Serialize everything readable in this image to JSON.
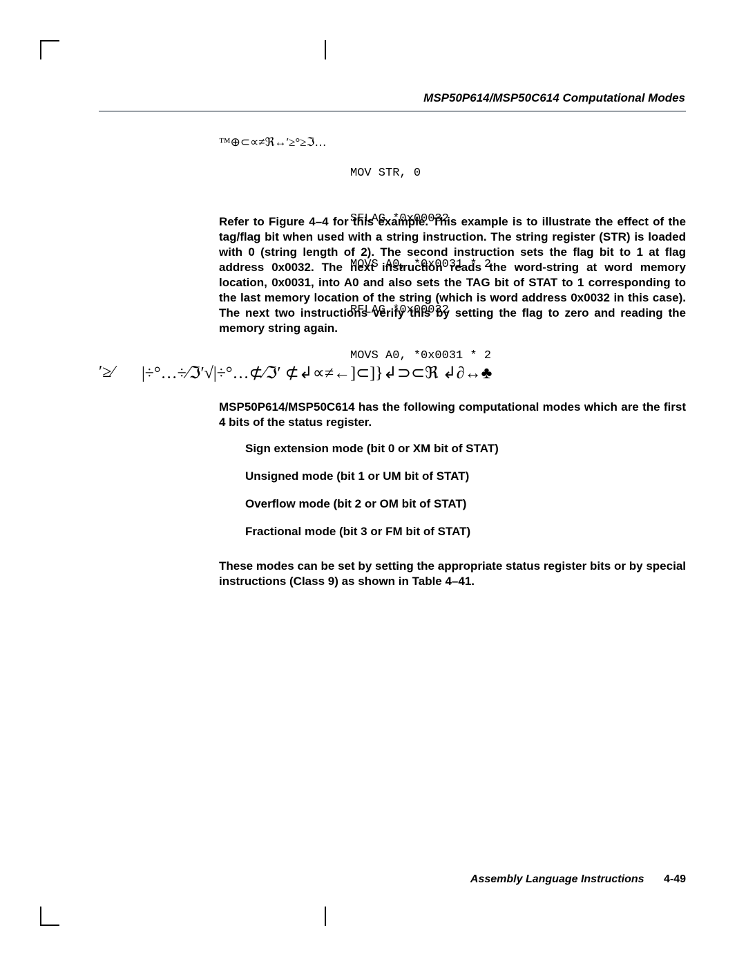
{
  "header": {
    "title": "MSP50P614/MSP50C614 Computational Modes"
  },
  "code_example": {
    "label_symbols": "™⊕⊂∝≠ℜ↔′≥°≥ℑ…",
    "lines": [
      "MOV STR, 0",
      "SFLAG *0x00032",
      "MOVS A0, *0x0031 * 2",
      "RFLAG *0x00032",
      "MOVS A0, *0x0031 * 2"
    ]
  },
  "paragraph_after_code": "Refer to Figure 4–4 for this example. This example is to illustrate the effect of the tag/flag bit when used with a string instruction. The string register (STR) is loaded with 0 (string length of 2). The second instruction sets the flag bit to 1 at flag address 0x0032. The next instruction reads the word-string at word memory location, 0x0031, into A0 and also sets the TAG bit of STAT to 1 corresponding to the last memory location of the string (which is word address 0x0032 in this case). The next two instructions verify this by setting the flag to zero and reading the memory string again.",
  "section": {
    "number_symbols": "′≥⁄",
    "title_symbols": "|÷°…÷⁄ℑ′√|÷°…⊄⁄ℑ′ ⊄↲∝≠←]⊂]}↲⊃⊂ℜ  ↲∂↔♣"
  },
  "paragraph_intro": "MSP50P614/MSP50C614 has the following computational modes which are the first 4 bits of the status register.",
  "modes": [
    "Sign extension mode (bit 0 or XM bit of STAT)",
    "Unsigned mode (bit 1 or UM bit of STAT)",
    "Overflow mode (bit 2 or OM bit of STAT)",
    "Fractional mode (bit 3 or FM bit of STAT)"
  ],
  "paragraph_after_modes": "These modes can be set by setting the appropriate status register bits or by special instructions (Class 9) as shown in Table 4–41.",
  "footer": {
    "title": "Assembly Language Instructions",
    "page": "4-49"
  }
}
